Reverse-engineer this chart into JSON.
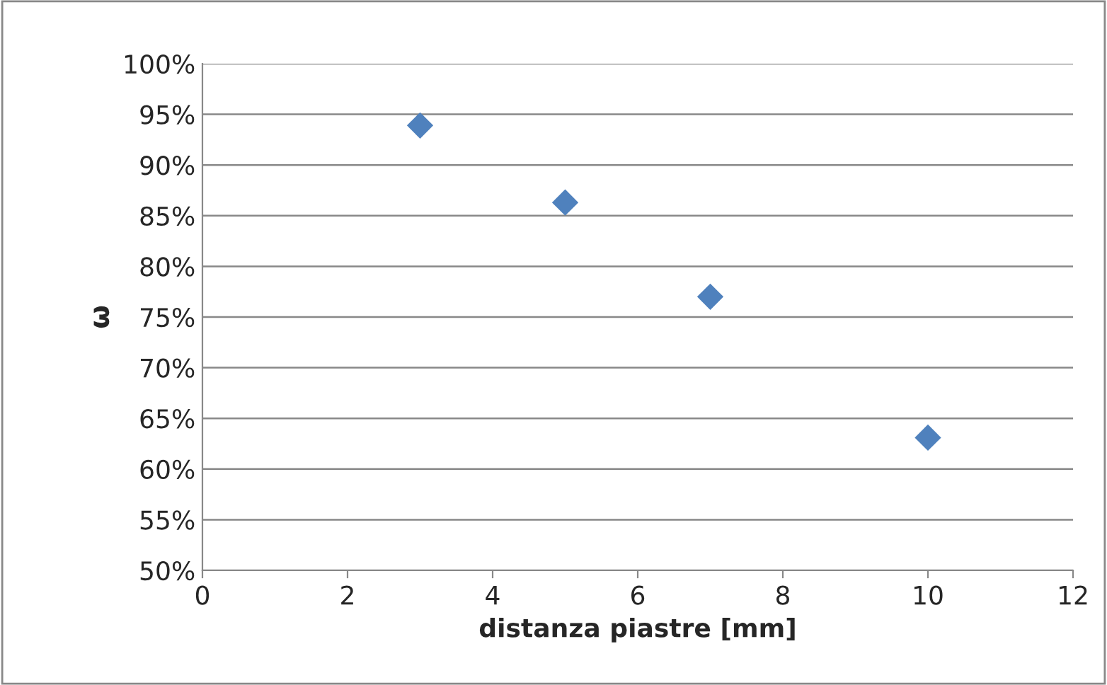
{
  "chart_data": {
    "type": "scatter",
    "xlabel": "distanza piastre [mm]",
    "ylabel": "ω",
    "x": [
      3,
      5,
      7,
      10
    ],
    "series": [
      {
        "color": "#4f81bd",
        "values": [
          93.9,
          86.3,
          77.0,
          63.1
        ]
      }
    ],
    "xlim": [
      0,
      12
    ],
    "xticks": [
      0,
      2,
      4,
      6,
      8,
      10,
      12
    ],
    "ylim": [
      50,
      100
    ],
    "yticks": [
      {
        "value": 50,
        "label": "50%"
      },
      {
        "value": 55,
        "label": "55%"
      },
      {
        "value": 60,
        "label": "60%"
      },
      {
        "value": 65,
        "label": "65%"
      },
      {
        "value": 70,
        "label": "70%"
      },
      {
        "value": 75,
        "label": "75%"
      },
      {
        "value": 80,
        "label": "80%"
      },
      {
        "value": 85,
        "label": "85%"
      },
      {
        "value": 90,
        "label": "90%"
      },
      {
        "value": 95,
        "label": "95%"
      },
      {
        "value": 100,
        "label": "100%"
      }
    ],
    "grid": "y",
    "marker": "diamond",
    "legend": false
  }
}
